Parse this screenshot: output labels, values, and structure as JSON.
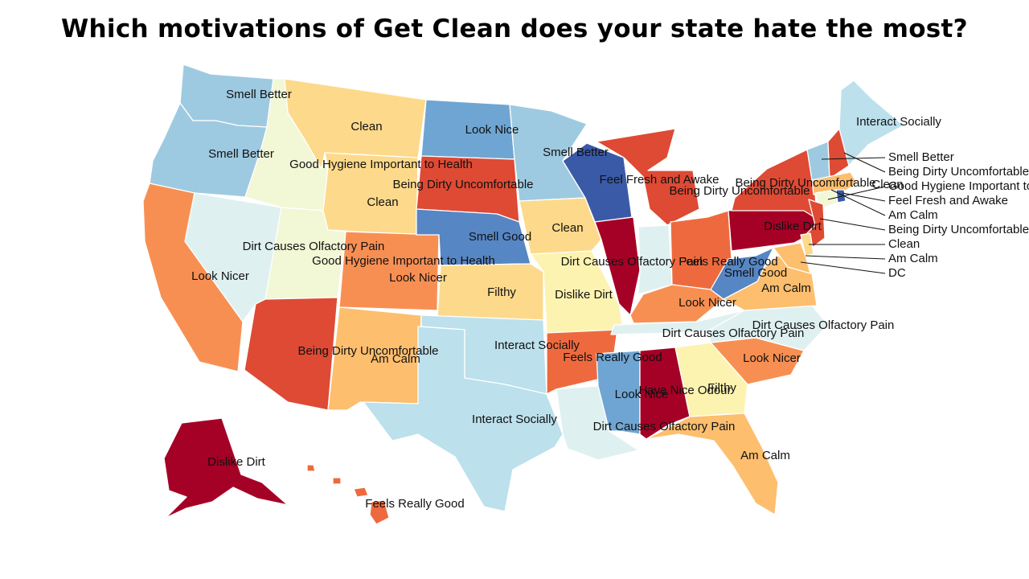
{
  "title": "Which motivations of Get Clean does your state hate the most?",
  "colors": {
    "Smell Better": "#9ecae1",
    "Clean": "#fdd98b",
    "Look Nice": "#6fa5d2",
    "Good Hygiene Important to Health": "#f2f7d6",
    "Being Dirty Uncomfortable": "#de4a34",
    "Feel Fresh and Awake": "#3a5aa8",
    "Smell Good": "#5686c4",
    "Dirt Causes Olfactory Pain": "#dff0f0",
    "Look Nicer": "#f88f52",
    "Am Calm": "#fdbe6e",
    "Filthy": "#fdf3b0",
    "Dislike Dirt": "#a50026",
    "Interact Socially": "#bce0ec",
    "Feels Really Good": "#ee6a3e",
    "Have Nice Odour": "#fdf3b0"
  },
  "states": [
    {
      "id": "WA",
      "value": "Smell Better"
    },
    {
      "id": "OR",
      "value": "Smell Better"
    },
    {
      "id": "CA",
      "value": "Look Nicer"
    },
    {
      "id": "NV",
      "value": "Dirt Causes Olfactory Pain"
    },
    {
      "id": "ID",
      "value": "Good Hygiene Important to Health"
    },
    {
      "id": "UT",
      "value": "Good Hygiene Important to Health"
    },
    {
      "id": "AZ",
      "value": "Being Dirty Uncomfortable"
    },
    {
      "id": "MT",
      "value": "Clean"
    },
    {
      "id": "WY",
      "value": "Clean"
    },
    {
      "id": "CO",
      "value": "Look Nicer"
    },
    {
      "id": "NM",
      "value": "Am Calm"
    },
    {
      "id": "ND",
      "value": "Look Nice"
    },
    {
      "id": "SD",
      "value": "Being Dirty Uncomfortable"
    },
    {
      "id": "NE",
      "value": "Smell Good"
    },
    {
      "id": "KS",
      "value": "Clean"
    },
    {
      "id": "OK",
      "value": "Interact Socially"
    },
    {
      "id": "TX",
      "value": "Interact Socially"
    },
    {
      "id": "MN",
      "value": "Smell Better"
    },
    {
      "id": "IA",
      "value": "Clean"
    },
    {
      "id": "MO",
      "value": "Filthy"
    },
    {
      "id": "AR",
      "value": "Feels Really Good"
    },
    {
      "id": "LA",
      "value": "Dirt Causes Olfactory Pain"
    },
    {
      "id": "WI",
      "value": "Feel Fresh and Awake"
    },
    {
      "id": "IL",
      "value": "Dislike Dirt"
    },
    {
      "id": "MI",
      "value": "Being Dirty Uncomfortable"
    },
    {
      "id": "IN",
      "value": "Dirt Causes Olfactory Pain"
    },
    {
      "id": "OH",
      "value": "Feels Really Good"
    },
    {
      "id": "KY",
      "value": "Look Nicer"
    },
    {
      "id": "TN",
      "value": "Dirt Causes Olfactory Pain"
    },
    {
      "id": "MS",
      "value": "Look Nice"
    },
    {
      "id": "AL",
      "value": "Dislike Dirt"
    },
    {
      "id": "GA",
      "value": "Filthy"
    },
    {
      "id": "FL",
      "value": "Am Calm"
    },
    {
      "id": "SC",
      "value": "Look Nicer"
    },
    {
      "id": "NC",
      "value": "Dirt Causes Olfactory Pain"
    },
    {
      "id": "VA",
      "value": "Am Calm"
    },
    {
      "id": "WV",
      "value": "Smell Good"
    },
    {
      "id": "PA",
      "value": "Dislike Dirt"
    },
    {
      "id": "NY",
      "value": "Being Dirty Uncomfortable"
    },
    {
      "id": "VT",
      "value": "Smell Better"
    },
    {
      "id": "NH",
      "value": "Being Dirty Uncomfortable"
    },
    {
      "id": "ME",
      "value": "Interact Socially"
    },
    {
      "id": "MA",
      "value": "Am Calm"
    },
    {
      "id": "CT",
      "value": "Good Hygiene Important to Health"
    },
    {
      "id": "RI",
      "value": "Feel Fresh and Awake"
    },
    {
      "id": "NJ",
      "value": "Being Dirty Uncomfortable"
    },
    {
      "id": "DE",
      "value": "Clean"
    },
    {
      "id": "MD",
      "value": "Am Calm"
    },
    {
      "id": "DC",
      "value": "Am Calm"
    },
    {
      "id": "AK",
      "value": "Dislike Dirt"
    },
    {
      "id": "HI",
      "value": "Feels Really Good"
    }
  ],
  "labels": [
    {
      "text": "Smell Better"
    },
    {
      "text": "Smell Better"
    },
    {
      "text": "Clean"
    },
    {
      "text": "Look Nice"
    },
    {
      "text": "Smell Better"
    },
    {
      "text": "Good Hygiene Important to Health"
    },
    {
      "text": "Being Dirty Uncomfortable"
    },
    {
      "text": "Feel Fresh and Awake"
    },
    {
      "text": "Being Dirty Uncomfortable"
    },
    {
      "text": "Clean"
    },
    {
      "text": "Clean"
    },
    {
      "text": "Smell Good"
    },
    {
      "text": "Dirt Causes Olfactory Pain"
    },
    {
      "text": "Good Hygiene Important to Health"
    },
    {
      "text": "Look Nicer"
    },
    {
      "text": "Look Nicer"
    },
    {
      "text": "Clean"
    },
    {
      "text": "Filthy"
    },
    {
      "text": "Dislike Dirt"
    },
    {
      "text": "Dirt Causes Olfactory Pain"
    },
    {
      "text": "Feels Really Good"
    },
    {
      "text": "Smell Good"
    },
    {
      "text": "Dislike Dirt"
    },
    {
      "text": "Am Calm"
    },
    {
      "text": "Look Nicer"
    },
    {
      "text": "Being Dirty Uncomfortable"
    },
    {
      "text": "Am Calm"
    },
    {
      "text": "Interact Socially"
    },
    {
      "text": "Feels Really Good"
    },
    {
      "text": "Dirt Causes Olfactory Pain"
    },
    {
      "text": "Dirt Causes Olfactory Pain"
    },
    {
      "text": "Look Nicer"
    },
    {
      "text": "Look Nice"
    },
    {
      "text": "Have Nice Odour"
    },
    {
      "text": "Filthy"
    },
    {
      "text": "Interact Socially"
    },
    {
      "text": "Dirt Causes Olfactory Pain"
    },
    {
      "text": "Am Calm"
    },
    {
      "text": "Dislike Dirt"
    },
    {
      "text": "Feels Really Good"
    },
    {
      "text": "Being Dirty Uncomfortable"
    },
    {
      "text": "Interact Socially"
    }
  ],
  "callouts": [
    {
      "text": "Smell Better"
    },
    {
      "text": "Being Dirty Uncomfortable"
    },
    {
      "text": "Good Hygiene Important to Health"
    },
    {
      "text": "Feel Fresh and Awake"
    },
    {
      "text": "Am Calm"
    },
    {
      "text": "Being Dirty Uncomfortable"
    },
    {
      "text": "Clean"
    },
    {
      "text": "Am Calm"
    },
    {
      "text": "DC"
    }
  ]
}
